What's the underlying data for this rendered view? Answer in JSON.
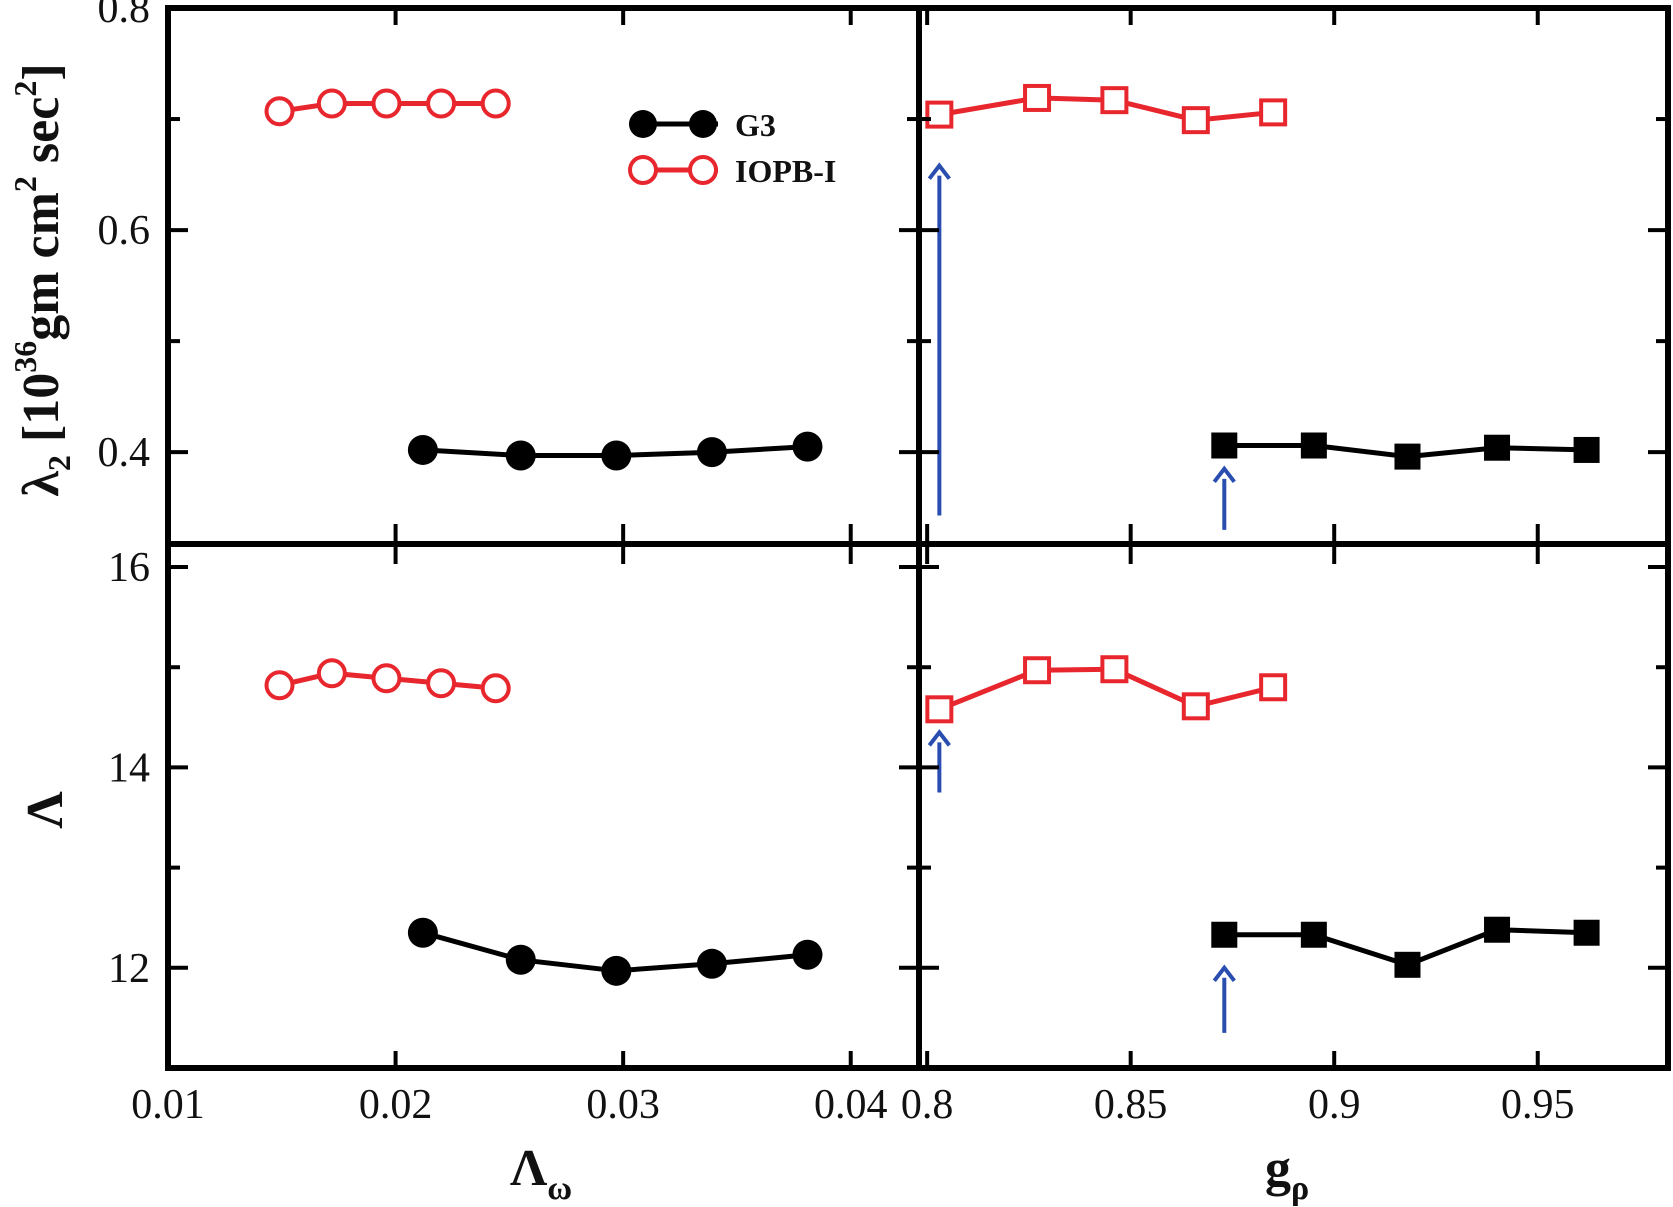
{
  "chart_data": {
    "type": "line",
    "legend": {
      "position": "top-right of upper-left panel",
      "entries": [
        {
          "name": "G3",
          "marker": "filled-circle",
          "color": "#000000"
        },
        {
          "name": "IOPB-I",
          "marker": "open-circle",
          "color": "#e8262d"
        }
      ]
    },
    "axes": {
      "left_x": {
        "label": "Λ",
        "label_sub": "ω",
        "range": [
          0.01,
          0.043
        ],
        "ticks": [
          0.01,
          0.02,
          0.03,
          0.04
        ],
        "tick_labels": [
          "0.01",
          "0.02",
          "0.03",
          "0.04"
        ]
      },
      "right_x": {
        "label": "g",
        "label_sub": "ρ",
        "range": [
          0.798,
          0.982
        ],
        "ticks": [
          0.8,
          0.85,
          0.9,
          0.95
        ],
        "tick_labels": [
          "0.8",
          "0.85",
          "0.9",
          "0.95"
        ]
      },
      "top_y": {
        "label_parts": {
          "lambda": "λ",
          "lambda_sub": "2",
          "bracket_open": " [10",
          "exp36": "36",
          "gm": "gm cm",
          "sq1": "2",
          "sec": " sec",
          "sq2": "2",
          "bracket_close": "]"
        },
        "range": [
          0.32,
          0.8
        ],
        "ticks": [
          0.4,
          0.6,
          0.8
        ],
        "tick_labels": [
          "0.4",
          "0.6",
          "0.8"
        ]
      },
      "bottom_y": {
        "label": "Λ",
        "range": [
          11.0,
          16.2
        ],
        "ticks": [
          12,
          14,
          16
        ],
        "tick_labels": [
          "12",
          "14",
          "16"
        ]
      }
    },
    "panels": [
      {
        "id": "top-left",
        "x_axis": "left_x",
        "y_axis": "top_y",
        "series": [
          {
            "name": "G3",
            "marker": "filled-circle",
            "color": "#000000",
            "x": [
              0.0212,
              0.0255,
              0.0297,
              0.0339,
              0.0381
            ],
            "y": [
              0.402,
              0.397,
              0.397,
              0.4,
              0.405
            ]
          },
          {
            "name": "IOPB-I",
            "marker": "open-circle",
            "color": "#e8262d",
            "x": [
              0.0149,
              0.0172,
              0.0196,
              0.022,
              0.0244
            ],
            "y": [
              0.707,
              0.714,
              0.714,
              0.714,
              0.714
            ]
          }
        ]
      },
      {
        "id": "top-right",
        "x_axis": "right_x",
        "y_axis": "top_y",
        "series": [
          {
            "name": "G3",
            "marker": "filled-square",
            "color": "#000000",
            "x": [
              0.873,
              0.895,
              0.918,
              0.94,
              0.962
            ],
            "y": [
              0.406,
              0.406,
              0.396,
              0.404,
              0.402
            ]
          },
          {
            "name": "IOPB-I",
            "marker": "open-square",
            "color": "#e8262d",
            "x": [
              0.803,
              0.827,
              0.846,
              0.866,
              0.885
            ],
            "y": [
              0.704,
              0.719,
              0.717,
              0.699,
              0.706
            ]
          }
        ],
        "annotations": [
          {
            "type": "arrow-up",
            "color": "#2a4db0",
            "x": 0.803,
            "y_from": 0.343,
            "y_to": 0.658
          },
          {
            "type": "arrow-up",
            "color": "#2a4db0",
            "x": 0.873,
            "y_from": 0.33,
            "y_to": 0.385
          }
        ]
      },
      {
        "id": "bottom-left",
        "x_axis": "left_x",
        "y_axis": "bottom_y",
        "series": [
          {
            "name": "G3",
            "marker": "filled-circle",
            "color": "#000000",
            "x": [
              0.0212,
              0.0255,
              0.0297,
              0.0339,
              0.0381
            ],
            "y": [
              12.35,
              12.08,
              11.97,
              12.04,
              12.13
            ]
          },
          {
            "name": "IOPB-I",
            "marker": "open-circle",
            "color": "#e8262d",
            "x": [
              0.0149,
              0.0172,
              0.0196,
              0.022,
              0.0244
            ],
            "y": [
              14.82,
              14.94,
              14.89,
              14.84,
              14.79
            ]
          }
        ]
      },
      {
        "id": "bottom-right",
        "x_axis": "right_x",
        "y_axis": "bottom_y",
        "series": [
          {
            "name": "G3",
            "marker": "filled-square",
            "color": "#000000",
            "x": [
              0.873,
              0.895,
              0.918,
              0.94,
              0.962
            ],
            "y": [
              12.33,
              12.33,
              12.03,
              12.38,
              12.35
            ]
          },
          {
            "name": "IOPB-I",
            "marker": "open-square",
            "color": "#e8262d",
            "x": [
              0.803,
              0.827,
              0.846,
              0.866,
              0.885
            ],
            "y": [
              14.58,
              14.97,
              14.98,
              14.61,
              14.8
            ]
          }
        ],
        "annotations": [
          {
            "type": "arrow-up",
            "color": "#2a4db0",
            "x": 0.803,
            "y_from": 13.75,
            "y_to": 14.35
          },
          {
            "type": "arrow-up",
            "color": "#2a4db0",
            "x": 0.873,
            "y_from": 11.35,
            "y_to": 12.0
          }
        ]
      }
    ]
  }
}
